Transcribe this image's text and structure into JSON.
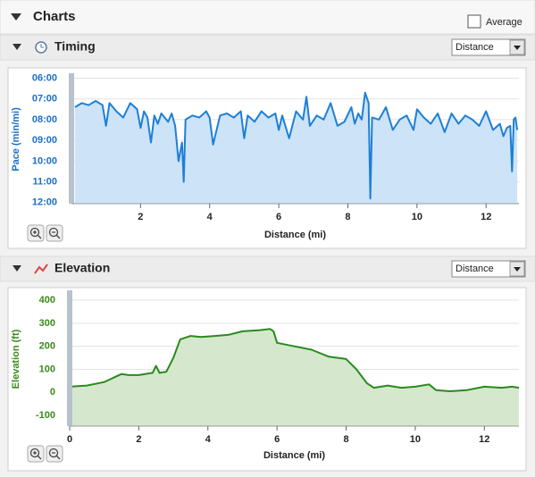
{
  "header": {
    "title": "Charts",
    "average_label": "Average"
  },
  "chart_data": [
    {
      "type": "line",
      "title": "Timing",
      "x_mode": "Distance",
      "x_label": "Distance (mi)",
      "y_label": "Pace (min/mi)",
      "color": "#1e7fd6",
      "fill": "#cde3f8",
      "axis_color": "#1a6fcc",
      "grid": true,
      "xlim": [
        0,
        12.95
      ],
      "xticks": [
        2,
        4,
        6,
        8,
        10,
        12
      ],
      "ylim": [
        12.05,
        5.85
      ],
      "yticks": [
        {
          "value": 6,
          "label": "06:00"
        },
        {
          "value": 7,
          "label": "07:00"
        },
        {
          "value": 8,
          "label": "08:00"
        },
        {
          "value": 9,
          "label": "09:00"
        },
        {
          "value": 10,
          "label": "10:00"
        },
        {
          "value": 11,
          "label": "11:00"
        },
        {
          "value": 12,
          "label": "12:00"
        }
      ],
      "x": [
        0.1,
        0.3,
        0.5,
        0.7,
        0.9,
        1.0,
        1.1,
        1.3,
        1.5,
        1.7,
        1.9,
        2.0,
        2.1,
        2.2,
        2.3,
        2.4,
        2.5,
        2.6,
        2.8,
        2.9,
        3.0,
        3.1,
        3.2,
        3.25,
        3.3,
        3.5,
        3.7,
        3.9,
        4.0,
        4.1,
        4.2,
        4.3,
        4.5,
        4.7,
        4.9,
        5.0,
        5.1,
        5.3,
        5.5,
        5.7,
        5.9,
        6.0,
        6.1,
        6.3,
        6.5,
        6.7,
        6.8,
        6.9,
        7.1,
        7.3,
        7.5,
        7.7,
        7.9,
        8.1,
        8.2,
        8.3,
        8.4,
        8.5,
        8.6,
        8.65,
        8.7,
        8.9,
        9.1,
        9.3,
        9.5,
        9.7,
        9.9,
        10.0,
        10.2,
        10.4,
        10.6,
        10.8,
        11.0,
        11.2,
        11.4,
        11.6,
        11.8,
        12.0,
        12.2,
        12.4,
        12.5,
        12.6,
        12.7,
        12.75,
        12.8,
        12.85,
        12.9
      ],
      "values": [
        7.4,
        7.2,
        7.3,
        7.1,
        7.3,
        8.3,
        7.2,
        7.6,
        7.9,
        7.2,
        7.5,
        8.4,
        7.6,
        7.9,
        9.1,
        7.8,
        8.2,
        7.7,
        8.1,
        7.7,
        8.3,
        10.0,
        9.1,
        11.0,
        8.0,
        7.8,
        7.9,
        7.6,
        7.9,
        9.2,
        8.5,
        7.8,
        7.7,
        7.9,
        7.6,
        8.9,
        7.8,
        8.1,
        7.6,
        7.9,
        7.7,
        8.5,
        7.8,
        8.9,
        7.6,
        8.0,
        6.9,
        8.3,
        7.8,
        8.0,
        7.2,
        8.3,
        8.1,
        7.4,
        8.2,
        7.7,
        8.0,
        6.7,
        7.2,
        11.8,
        7.9,
        8.0,
        7.4,
        8.5,
        8.0,
        7.8,
        8.5,
        7.5,
        7.9,
        8.2,
        7.7,
        8.6,
        7.7,
        8.2,
        7.8,
        8.0,
        8.3,
        7.6,
        8.5,
        8.2,
        8.8,
        8.4,
        8.3,
        10.5,
        8.0,
        7.9,
        8.5
      ]
    },
    {
      "type": "line",
      "title": "Elevation",
      "x_mode": "Distance",
      "x_label": "Distance (mi)",
      "y_label": "Elevation (ft)",
      "color": "#2a8a1e",
      "fill": "#d5e8cd",
      "axis_color": "#3a8a1a",
      "grid": true,
      "xlim": [
        0,
        13.0
      ],
      "xticks": [
        0,
        2,
        4,
        6,
        8,
        10,
        12
      ],
      "ylim": [
        -146,
        435
      ],
      "yticks": [
        -100,
        0,
        100,
        200,
        300,
        400
      ],
      "x": [
        0,
        0.5,
        1,
        1.5,
        1.7,
        2.0,
        2.4,
        2.5,
        2.6,
        2.8,
        3.0,
        3.2,
        3.5,
        3.8,
        4.2,
        4.6,
        5.0,
        5.5,
        5.8,
        5.9,
        6.0,
        6.5,
        7.0,
        7.5,
        8.0,
        8.3,
        8.6,
        8.8,
        9.2,
        9.6,
        10.0,
        10.4,
        10.6,
        11.0,
        11.5,
        12.0,
        12.5,
        12.8,
        13.0
      ],
      "values": [
        25,
        30,
        45,
        80,
        75,
        75,
        85,
        115,
        85,
        90,
        150,
        230,
        245,
        240,
        245,
        250,
        265,
        270,
        275,
        265,
        215,
        200,
        185,
        155,
        145,
        100,
        40,
        20,
        30,
        20,
        25,
        35,
        10,
        5,
        10,
        25,
        20,
        25,
        20
      ]
    }
  ]
}
